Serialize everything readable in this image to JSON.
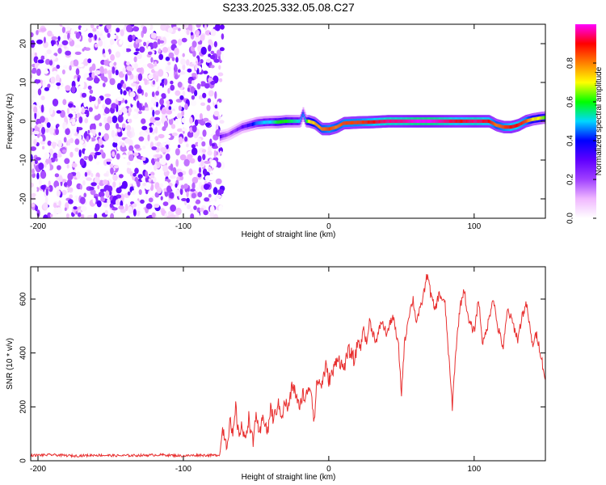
{
  "title": "S233.2025.332.05.08.C27",
  "chart_data": [
    {
      "type": "heatmap",
      "xlabel": "Height of straight line (km)",
      "ylabel": "Frequency (Hz)",
      "xlim": [
        -205,
        149
      ],
      "ylim": [
        -25,
        25
      ],
      "xticks": [
        -200,
        -100,
        0,
        100
      ],
      "yticks": [
        -20,
        -10,
        0,
        10,
        20
      ],
      "noise_region": [
        -205,
        -73
      ],
      "signal_track": {
        "x": [
          -75,
          -70,
          -65,
          -60,
          -55,
          -50,
          -45,
          -40,
          -35,
          -30,
          -25,
          -20,
          -18,
          -16,
          -14,
          -10,
          -5,
          0,
          5,
          10,
          20,
          30,
          40,
          50,
          60,
          70,
          80,
          90,
          100,
          110,
          115,
          120,
          125,
          130,
          135,
          140,
          145,
          149
        ],
        "y": [
          -4,
          -3.5,
          -2.5,
          -1.5,
          -1,
          -0.5,
          -0.3,
          -0.2,
          -0.2,
          0,
          0,
          0,
          2,
          0,
          0,
          -0.5,
          -2,
          -2,
          -1.5,
          -0.5,
          -0.3,
          -0.2,
          0,
          0,
          0,
          0,
          0,
          0,
          0,
          0,
          -1,
          -1.5,
          -1.5,
          -1,
          0,
          0.5,
          0.8,
          1.0
        ],
        "amp": [
          0.3,
          0.2,
          0.25,
          0.3,
          0.35,
          0.45,
          0.5,
          0.5,
          0.6,
          0.6,
          0.55,
          0.5,
          0.45,
          0.55,
          0.7,
          0.75,
          0.8,
          0.85,
          0.8,
          0.85,
          0.85,
          0.9,
          0.95,
          0.95,
          1.0,
          1.0,
          0.95,
          0.9,
          0.95,
          0.9,
          0.8,
          0.85,
          0.9,
          0.9,
          0.85,
          0.7,
          0.7,
          0.6
        ]
      },
      "colorbar": {
        "label": "Normalized spectral amplitude",
        "ticks": [
          0.0,
          0.2,
          0.4,
          0.6,
          0.8
        ],
        "colors": [
          "#ffffff",
          "#f0b8ff",
          "#a040ff",
          "#6000ff",
          "#0000ff",
          "#00d8ff",
          "#00ff00",
          "#ffff00",
          "#ff8000",
          "#ff0000",
          "#ff00ff"
        ]
      }
    },
    {
      "type": "line",
      "xlabel": "Height of straight line (km)",
      "ylabel": "SNR (10 * v/v)",
      "xlim": [
        -205,
        149
      ],
      "ylim": [
        0,
        720
      ],
      "xticks": [
        -200,
        -100,
        0,
        100
      ],
      "yticks": [
        0,
        200,
        400,
        600
      ],
      "color": "#e83030",
      "series": [
        {
          "x": [
            -205,
            -190,
            -175,
            -160,
            -145,
            -130,
            -115,
            -100,
            -90,
            -80,
            -75,
            -73,
            -70,
            -68,
            -66,
            -64,
            -62,
            -60,
            -58,
            -55,
            -52,
            -50,
            -48,
            -45,
            -42,
            -40,
            -38,
            -35,
            -32,
            -30,
            -28,
            -25,
            -22,
            -20,
            -18,
            -16,
            -14,
            -12,
            -10,
            -8,
            -5,
            -2,
            0,
            3,
            6,
            10,
            14,
            18,
            20,
            22,
            24,
            26,
            28,
            30,
            33,
            36,
            40,
            44,
            48,
            50,
            52,
            55,
            58,
            60,
            63,
            66,
            68,
            70,
            73,
            76,
            80,
            83,
            85,
            87,
            90,
            93,
            96,
            100,
            103,
            106,
            110,
            113,
            116,
            120,
            123,
            126,
            130,
            133,
            136,
            140,
            143,
            146,
            149
          ],
          "y": [
            20,
            22,
            18,
            21,
            19,
            20,
            22,
            18,
            21,
            20,
            22,
            120,
            60,
            150,
            80,
            200,
            90,
            140,
            70,
            160,
            60,
            190,
            80,
            170,
            100,
            200,
            150,
            210,
            170,
            220,
            190,
            280,
            240,
            180,
            260,
            220,
            280,
            260,
            150,
            300,
            280,
            350,
            300,
            330,
            390,
            340,
            410,
            370,
            450,
            420,
            500,
            430,
            520,
            480,
            440,
            520,
            470,
            540,
            420,
            250,
            430,
            540,
            600,
            520,
            560,
            640,
            700,
            620,
            560,
            620,
            580,
            350,
            200,
            380,
            560,
            640,
            520,
            480,
            600,
            430,
            520,
            610,
            500,
            420,
            560,
            520,
            450,
            540,
            580,
            430,
            470,
            390,
            300
          ]
        }
      ]
    }
  ]
}
